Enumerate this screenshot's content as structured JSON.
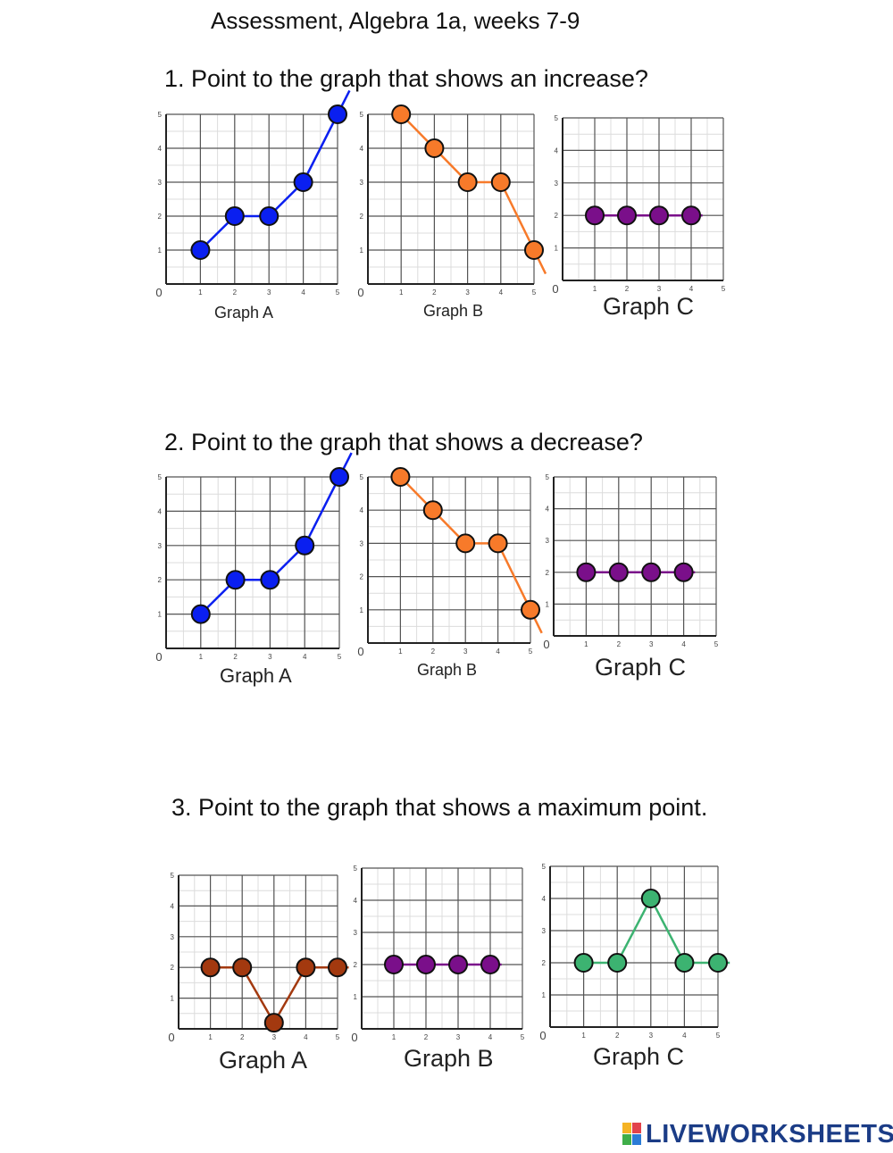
{
  "worksheet": {
    "title": "Assessment, Algebra 1a, weeks 7-9",
    "questions": [
      {
        "text": "1. Point to the graph that shows an increase?",
        "graphs": [
          {
            "label": "Graph A",
            "type": "line",
            "color": "#0a1ff0",
            "x": [
              1,
              2,
              3,
              4,
              5
            ],
            "y": [
              1,
              2,
              2,
              3,
              5
            ],
            "xlim": [
              0,
              5
            ],
            "ylim": [
              0,
              5
            ],
            "x_ticks": [
              "0",
              "1",
              "2",
              "3",
              "4",
              "5"
            ],
            "y_ticks": [
              "1",
              "2",
              "3",
              "4",
              "5"
            ]
          },
          {
            "label": "Graph B",
            "type": "line",
            "color": "#f77a2a",
            "x": [
              1,
              2,
              3,
              4,
              5
            ],
            "y": [
              5,
              4,
              3,
              3,
              1
            ],
            "xlim": [
              0,
              5
            ],
            "ylim": [
              0,
              5
            ],
            "x_ticks": [
              "0",
              "1",
              "2",
              "3",
              "4",
              "5"
            ],
            "y_ticks": [
              "1",
              "2",
              "3",
              "4",
              "5"
            ]
          },
          {
            "label": "Graph C",
            "type": "line",
            "color": "#7a0f8a",
            "x": [
              1,
              2,
              3,
              4
            ],
            "y": [
              2,
              2,
              2,
              2
            ],
            "xlim": [
              0,
              5
            ],
            "ylim": [
              0,
              5
            ],
            "x_ticks": [
              "0",
              "1",
              "2",
              "3",
              "4",
              "5"
            ],
            "y_ticks": [
              "1",
              "2",
              "3",
              "4",
              "5"
            ]
          }
        ]
      },
      {
        "text": "2. Point to the graph that shows a decrease?",
        "graphs": [
          {
            "label": "Graph A",
            "type": "line",
            "color": "#0a1ff0",
            "x": [
              1,
              2,
              3,
              4,
              5
            ],
            "y": [
              1,
              2,
              2,
              3,
              5
            ],
            "xlim": [
              0,
              5
            ],
            "ylim": [
              0,
              5
            ],
            "x_ticks": [
              "0",
              "1",
              "2",
              "3",
              "4",
              "5"
            ],
            "y_ticks": [
              "1",
              "2",
              "3",
              "4",
              "5"
            ]
          },
          {
            "label": "Graph B",
            "type": "line",
            "color": "#f77a2a",
            "x": [
              1,
              2,
              3,
              4,
              5
            ],
            "y": [
              5,
              4,
              3,
              3,
              1
            ],
            "xlim": [
              0,
              5
            ],
            "ylim": [
              0,
              5
            ],
            "x_ticks": [
              "0",
              "1",
              "2",
              "3",
              "4",
              "5"
            ],
            "y_ticks": [
              "1",
              "2",
              "3",
              "4",
              "5"
            ]
          },
          {
            "label": "Graph C",
            "type": "line",
            "color": "#7a0f8a",
            "x": [
              1,
              2,
              3,
              4
            ],
            "y": [
              2,
              2,
              2,
              2
            ],
            "xlim": [
              0,
              5
            ],
            "ylim": [
              0,
              5
            ],
            "x_ticks": [
              "0",
              "1",
              "2",
              "3",
              "4",
              "5"
            ],
            "y_ticks": [
              "1",
              "2",
              "3",
              "4",
              "5"
            ]
          }
        ]
      },
      {
        "text": "3. Point to the graph that shows a maximum point.",
        "graphs": [
          {
            "label": "Graph A",
            "type": "line",
            "color": "#a3390f",
            "x": [
              1,
              2,
              3,
              4,
              5
            ],
            "y": [
              2,
              2,
              0.2,
              2,
              2
            ],
            "xlim": [
              0,
              5
            ],
            "ylim": [
              0,
              5
            ],
            "x_ticks": [
              "0",
              "1",
              "2",
              "3",
              "4",
              "5"
            ],
            "y_ticks": [
              "1",
              "2",
              "3",
              "4",
              "5"
            ]
          },
          {
            "label": "Graph B",
            "type": "line",
            "color": "#7a0f8a",
            "x": [
              1,
              2,
              3,
              4
            ],
            "y": [
              2,
              2,
              2,
              2
            ],
            "xlim": [
              0,
              5
            ],
            "ylim": [
              0,
              5
            ],
            "x_ticks": [
              "0",
              "1",
              "2",
              "3",
              "4",
              "5"
            ],
            "y_ticks": [
              "1",
              "2",
              "3",
              "4",
              "5"
            ]
          },
          {
            "label": "Graph C",
            "type": "line",
            "color": "#3cb371",
            "x": [
              1,
              2,
              3,
              4,
              5
            ],
            "y": [
              2,
              2,
              4,
              2,
              2
            ],
            "xlim": [
              0,
              5
            ],
            "ylim": [
              0,
              5
            ],
            "x_ticks": [
              "0",
              "1",
              "2",
              "3",
              "4",
              "5"
            ],
            "y_ticks": [
              "1",
              "2",
              "3",
              "4",
              "5"
            ]
          }
        ]
      }
    ]
  },
  "footer": {
    "logo_text": "LIVEWORKSHEETS",
    "logo_colors": [
      "#f5b324",
      "#e2434b",
      "#3fae49",
      "#2b7bd6"
    ]
  }
}
